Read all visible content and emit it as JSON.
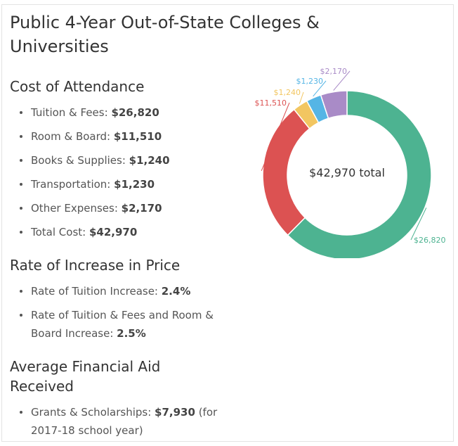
{
  "title": "Public 4-Year Out-of-State Colleges & Universities",
  "cost": {
    "heading": "Cost of Attendance",
    "items": [
      {
        "label": "Tuition & Fees: ",
        "value": "$26,820"
      },
      {
        "label": "Room & Board: ",
        "value": "$11,510"
      },
      {
        "label": "Books & Supplies: ",
        "value": "$1,240"
      },
      {
        "label": "Transportation: ",
        "value": "$1,230"
      },
      {
        "label": "Other Expenses: ",
        "value": "$2,170"
      },
      {
        "label": "Total Cost: ",
        "value": "$42,970"
      }
    ]
  },
  "rate": {
    "heading": "Rate of Increase in Price",
    "items": [
      {
        "label": "Rate of Tuition Increase: ",
        "value": "2.4%"
      },
      {
        "label": "Rate of Tuition & Fees and Room & Board Increase: ",
        "value": "2.5%"
      }
    ]
  },
  "aid": {
    "heading": "Average Financial Aid Received",
    "items": [
      {
        "label": "Grants & Scholarships: ",
        "value": "$7,930",
        "suffix": " (for 2017-18 school year)"
      }
    ]
  },
  "chart_data": {
    "type": "pie",
    "variant": "donut",
    "center_label": "$42,970 total",
    "slices": [
      {
        "value": 26820,
        "label": "$26,820",
        "color": "#4db391"
      },
      {
        "value": 11510,
        "label": "$11,510",
        "color": "#dc5252"
      },
      {
        "value": 1240,
        "label": "$1,240",
        "color": "#f2c661"
      },
      {
        "value": 1230,
        "label": "$1,230",
        "color": "#55b5e5"
      },
      {
        "value": 2170,
        "label": "$2,170",
        "color": "#a98bc7"
      }
    ]
  }
}
